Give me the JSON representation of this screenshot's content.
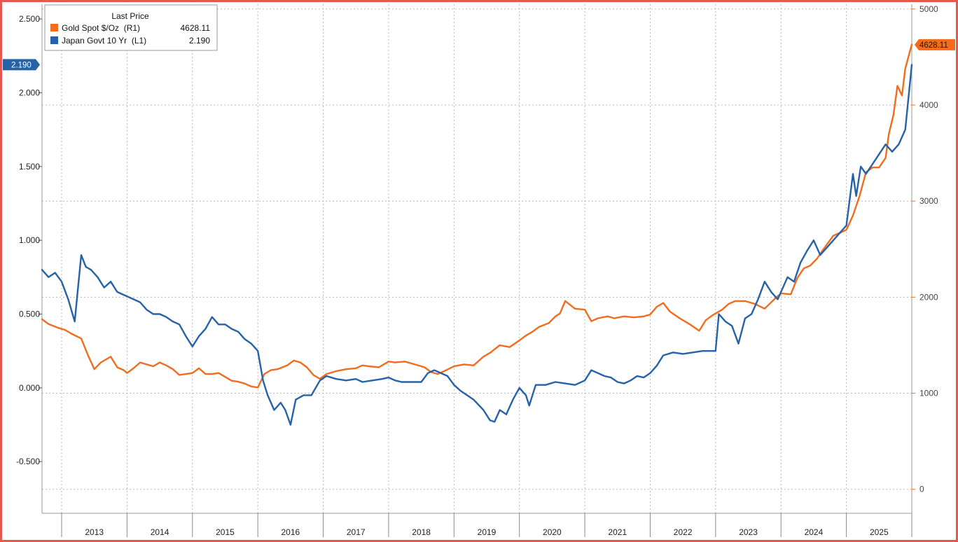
{
  "chart_data": {
    "type": "line",
    "legend": {
      "title": "Last Price",
      "entries": [
        {
          "name": "Gold Spot $/Oz  (R1)",
          "last": "4628.11",
          "color": "#f26c1d"
        },
        {
          "name": "Japan Govt 10 Yr  (L1)",
          "last": "2.190",
          "color": "#2563a8"
        }
      ],
      "placement": "top-left"
    },
    "left_axis": {
      "ticks": [
        "2.500",
        "2.000",
        "1.500",
        "1.000",
        "0.500",
        "0.000",
        "-0.500"
      ],
      "ylim": [
        -0.85,
        2.6
      ],
      "last_value_tag": "2.190"
    },
    "right_axis": {
      "ticks": [
        "5000",
        "4000",
        "3000",
        "2000",
        "1000",
        "0"
      ],
      "ylim": [
        -250,
        5050
      ],
      "last_value_tag": "4628.11"
    },
    "x_axis": {
      "years": [
        "2013",
        "2014",
        "2015",
        "2016",
        "2017",
        "2018",
        "2019",
        "2020",
        "2021",
        "2022",
        "2023",
        "2024",
        "2025"
      ],
      "xlim": [
        2012.7,
        2026.0
      ]
    },
    "grid": true,
    "series": [
      {
        "name": "Gold Spot $/Oz  (R1)",
        "axis": "right",
        "color": "#f26c1d",
        "x": [
          2012.7,
          2012.8,
          2012.95,
          2013.05,
          2013.15,
          2013.3,
          2013.4,
          2013.5,
          2013.6,
          2013.75,
          2013.85,
          2013.95,
          2014.0,
          2014.1,
          2014.2,
          2014.3,
          2014.4,
          2014.5,
          2014.6,
          2014.7,
          2014.8,
          2014.9,
          2015.0,
          2015.1,
          2015.2,
          2015.3,
          2015.4,
          2015.5,
          2015.6,
          2015.7,
          2015.8,
          2015.9,
          2016.0,
          2016.1,
          2016.2,
          2016.3,
          2016.45,
          2016.55,
          2016.65,
          2016.75,
          2016.85,
          2016.95,
          2017.05,
          2017.2,
          2017.35,
          2017.5,
          2017.6,
          2017.7,
          2017.85,
          2018.0,
          2018.1,
          2018.25,
          2018.4,
          2018.55,
          2018.65,
          2018.75,
          2018.85,
          2019.0,
          2019.15,
          2019.3,
          2019.45,
          2019.55,
          2019.7,
          2019.85,
          2020.0,
          2020.1,
          2020.2,
          2020.3,
          2020.45,
          2020.55,
          2020.62,
          2020.7,
          2020.85,
          2021.0,
          2021.1,
          2021.2,
          2021.35,
          2021.45,
          2021.6,
          2021.75,
          2021.9,
          2022.0,
          2022.1,
          2022.2,
          2022.3,
          2022.45,
          2022.6,
          2022.75,
          2022.85,
          2022.95,
          2023.0,
          2023.1,
          2023.2,
          2023.3,
          2023.45,
          2023.6,
          2023.75,
          2023.9,
          2024.0,
          2024.15,
          2024.25,
          2024.35,
          2024.45,
          2024.55,
          2024.65,
          2024.8,
          2024.9,
          2025.0,
          2025.1,
          2025.2,
          2025.3,
          2025.4,
          2025.5,
          2025.6,
          2025.65,
          2025.72,
          2025.78,
          2025.85,
          2025.9,
          2026.0
        ],
        "values": [
          1770,
          1720,
          1680,
          1660,
          1620,
          1570,
          1400,
          1250,
          1320,
          1380,
          1270,
          1240,
          1210,
          1260,
          1320,
          1300,
          1280,
          1320,
          1290,
          1250,
          1190,
          1200,
          1210,
          1260,
          1200,
          1200,
          1210,
          1170,
          1130,
          1120,
          1100,
          1070,
          1060,
          1200,
          1240,
          1250,
          1290,
          1340,
          1320,
          1270,
          1190,
          1150,
          1200,
          1230,
          1250,
          1260,
          1290,
          1280,
          1270,
          1330,
          1320,
          1330,
          1300,
          1270,
          1220,
          1200,
          1230,
          1280,
          1300,
          1290,
          1380,
          1420,
          1500,
          1480,
          1550,
          1600,
          1640,
          1690,
          1730,
          1800,
          1830,
          1960,
          1880,
          1870,
          1750,
          1780,
          1800,
          1780,
          1800,
          1790,
          1800,
          1820,
          1900,
          1940,
          1850,
          1780,
          1720,
          1650,
          1760,
          1810,
          1830,
          1870,
          1930,
          1960,
          1960,
          1930,
          1880,
          1980,
          2040,
          2030,
          2200,
          2300,
          2330,
          2400,
          2500,
          2640,
          2670,
          2700,
          2850,
          3050,
          3300,
          3350,
          3350,
          3450,
          3700,
          3900,
          4200,
          4100,
          4380,
          4630
        ]
      },
      {
        "name": "Japan Govt 10 Yr  (L1)",
        "axis": "left",
        "color": "#2563a8",
        "x": [
          2012.7,
          2012.8,
          2012.9,
          2013.0,
          2013.1,
          2013.2,
          2013.3,
          2013.37,
          2013.45,
          2013.55,
          2013.65,
          2013.75,
          2013.85,
          2013.95,
          2014.0,
          2014.1,
          2014.2,
          2014.3,
          2014.4,
          2014.5,
          2014.6,
          2014.7,
          2014.8,
          2014.9,
          2015.0,
          2015.1,
          2015.2,
          2015.3,
          2015.4,
          2015.5,
          2015.6,
          2015.7,
          2015.8,
          2015.9,
          2016.0,
          2016.08,
          2016.15,
          2016.25,
          2016.35,
          2016.42,
          2016.5,
          2016.58,
          2016.7,
          2016.82,
          2016.95,
          2017.05,
          2017.2,
          2017.35,
          2017.5,
          2017.6,
          2017.75,
          2017.9,
          2018.0,
          2018.1,
          2018.2,
          2018.35,
          2018.5,
          2018.6,
          2018.7,
          2018.8,
          2018.9,
          2019.0,
          2019.1,
          2019.2,
          2019.3,
          2019.45,
          2019.55,
          2019.62,
          2019.7,
          2019.8,
          2019.9,
          2020.0,
          2020.1,
          2020.15,
          2020.25,
          2020.4,
          2020.55,
          2020.7,
          2020.85,
          2021.0,
          2021.1,
          2021.2,
          2021.3,
          2021.4,
          2021.5,
          2021.6,
          2021.7,
          2021.8,
          2021.9,
          2022.0,
          2022.1,
          2022.2,
          2022.35,
          2022.5,
          2022.65,
          2022.8,
          2022.95,
          2023.0,
          2023.05,
          2023.15,
          2023.25,
          2023.35,
          2023.45,
          2023.55,
          2023.65,
          2023.75,
          2023.85,
          2023.95,
          2024.1,
          2024.2,
          2024.3,
          2024.4,
          2024.5,
          2024.6,
          2024.7,
          2024.8,
          2024.9,
          2025.0,
          2025.1,
          2025.15,
          2025.22,
          2025.3,
          2025.45,
          2025.6,
          2025.7,
          2025.8,
          2025.9,
          2026.0
        ],
        "values": [
          0.8,
          0.75,
          0.78,
          0.72,
          0.6,
          0.45,
          0.9,
          0.82,
          0.8,
          0.75,
          0.68,
          0.72,
          0.65,
          0.63,
          0.62,
          0.6,
          0.58,
          0.53,
          0.5,
          0.5,
          0.48,
          0.45,
          0.43,
          0.35,
          0.28,
          0.35,
          0.4,
          0.48,
          0.43,
          0.43,
          0.4,
          0.38,
          0.33,
          0.3,
          0.25,
          0.05,
          -0.05,
          -0.15,
          -0.1,
          -0.15,
          -0.25,
          -0.08,
          -0.05,
          -0.05,
          0.05,
          0.08,
          0.06,
          0.05,
          0.06,
          0.04,
          0.05,
          0.06,
          0.07,
          0.05,
          0.04,
          0.04,
          0.04,
          0.1,
          0.12,
          0.1,
          0.08,
          0.02,
          -0.02,
          -0.05,
          -0.08,
          -0.15,
          -0.22,
          -0.23,
          -0.15,
          -0.18,
          -0.08,
          0.0,
          -0.05,
          -0.12,
          0.02,
          0.02,
          0.04,
          0.03,
          0.02,
          0.05,
          0.12,
          0.1,
          0.08,
          0.07,
          0.04,
          0.03,
          0.05,
          0.08,
          0.07,
          0.1,
          0.15,
          0.22,
          0.24,
          0.23,
          0.24,
          0.25,
          0.25,
          0.25,
          0.5,
          0.45,
          0.42,
          0.3,
          0.47,
          0.5,
          0.6,
          0.72,
          0.65,
          0.6,
          0.75,
          0.72,
          0.85,
          0.93,
          1.0,
          0.9,
          0.95,
          1.0,
          1.05,
          1.1,
          1.45,
          1.3,
          1.5,
          1.45,
          1.55,
          1.65,
          1.6,
          1.65,
          1.75,
          2.19
        ]
      }
    ]
  }
}
